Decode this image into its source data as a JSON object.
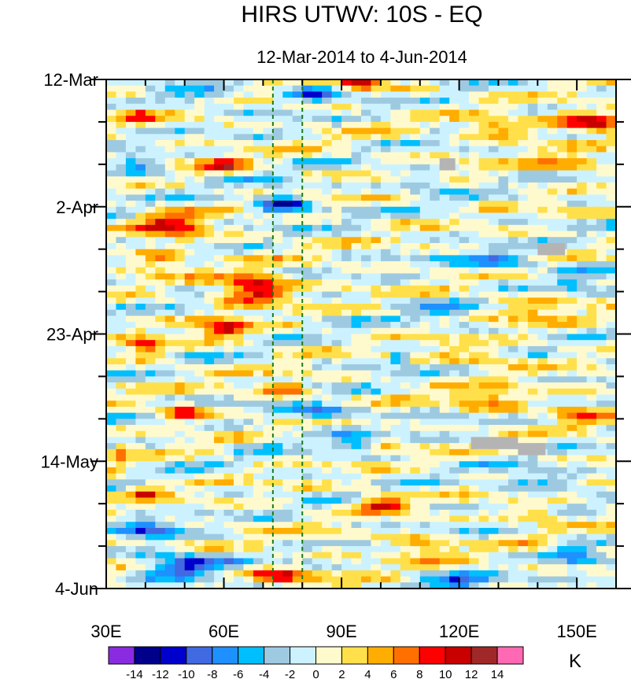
{
  "chart_data": {
    "type": "heatmap",
    "title": "HIRS UTWV: 10S - EQ",
    "subtitle": "12-Mar-2014 to 4-Jun-2014",
    "x_axis": {
      "range": [
        30,
        160
      ],
      "ticks": [
        {
          "value": 30,
          "label": "30E"
        },
        {
          "value": 60,
          "label": "60E"
        },
        {
          "value": 90,
          "label": "90E"
        },
        {
          "value": 120,
          "label": "120E"
        },
        {
          "value": 150,
          "label": "150E"
        }
      ]
    },
    "y_axis": {
      "range_days": [
        0,
        84
      ],
      "direction": "downward",
      "ticks": [
        {
          "day": 0,
          "label": "12-Mar"
        },
        {
          "day": 21,
          "label": "2-Apr"
        },
        {
          "day": 42,
          "label": "23-Apr"
        },
        {
          "day": 63,
          "label": "14-May"
        },
        {
          "day": 84,
          "label": "4-Jun"
        }
      ]
    },
    "reference_lines": [
      {
        "longitude": 72.5,
        "style": "dashed",
        "color": "#1a7a1a"
      },
      {
        "longitude": 80,
        "style": "dashed",
        "color": "#1a7a1a"
      }
    ],
    "missing_regions": [
      {
        "lon": [
          115,
          119
        ],
        "day": [
          13,
          15
        ]
      },
      {
        "lon": [
          140,
          147
        ],
        "day": [
          27,
          29
        ]
      },
      {
        "lon": [
          123,
          135
        ],
        "day": [
          59,
          61
        ]
      },
      {
        "lon": [
          135,
          142
        ],
        "day": [
          60,
          62
        ]
      }
    ],
    "colorbar": {
      "units": "K",
      "levels": [
        "-14",
        "-12",
        "-10",
        "-8",
        "-6",
        "-4",
        "-2",
        "0",
        "2",
        "4",
        "6",
        "8",
        "10",
        "12",
        "14"
      ],
      "colors": [
        "#8a2be2",
        "#00008b",
        "#0000cd",
        "#4169e1",
        "#1e90ff",
        "#00bfff",
        "#9ecae1",
        "#cdf2ff",
        "#fffacd",
        "#ffe04a",
        "#ffad00",
        "#ff7000",
        "#ff0000",
        "#c80000",
        "#a02828",
        "#ff69b4"
      ]
    },
    "features": [
      {
        "lon": 47,
        "day": 24,
        "value": 10,
        "sx": 8,
        "sy": 2.2
      },
      {
        "lon": 68,
        "day": 34.5,
        "value": 12,
        "sx": 9,
        "sy": 2.5
      },
      {
        "lon": 60,
        "day": 41,
        "value": 9,
        "sx": 6,
        "sy": 1.8
      },
      {
        "lon": 43,
        "day": 30,
        "value": 6,
        "sx": 7,
        "sy": 2
      },
      {
        "lon": 153,
        "day": 7,
        "value": 12,
        "sx": 10,
        "sy": 1.6
      },
      {
        "lon": 130,
        "day": 8,
        "value": 8,
        "sx": 8,
        "sy": 1.5
      },
      {
        "lon": 148,
        "day": 14,
        "value": 7,
        "sx": 8,
        "sy": 1.4
      },
      {
        "lon": 95,
        "day": 0.6,
        "value": 10,
        "sx": 5,
        "sy": 1
      },
      {
        "lon": 60,
        "day": 14,
        "value": 9,
        "sx": 6,
        "sy": 1.2
      },
      {
        "lon": 38,
        "day": 6,
        "value": 6,
        "sx": 5,
        "sy": 1.4
      },
      {
        "lon": 50,
        "day": 55,
        "value": 9,
        "sx": 5,
        "sy": 1.4
      },
      {
        "lon": 75,
        "day": 51,
        "value": 9,
        "sx": 6,
        "sy": 1
      },
      {
        "lon": 100,
        "day": 70,
        "value": 10,
        "sx": 6,
        "sy": 1.3
      },
      {
        "lon": 140,
        "day": 72,
        "value": 7,
        "sx": 6,
        "sy": 1.2
      },
      {
        "lon": 75,
        "day": 82,
        "value": 9,
        "sx": 9,
        "sy": 1.3
      },
      {
        "lon": 128,
        "day": 53,
        "value": 7,
        "sx": 10,
        "sy": 1.6
      },
      {
        "lon": 150,
        "day": 55,
        "value": 6,
        "sx": 6,
        "sy": 2
      },
      {
        "lon": 140,
        "day": 38,
        "value": 5,
        "sx": 10,
        "sy": 2
      },
      {
        "lon": 110,
        "day": 77,
        "value": 6,
        "sx": 8,
        "sy": 1.5
      },
      {
        "lon": 125,
        "day": 46,
        "value": 5,
        "sx": 10,
        "sy": 1.5
      },
      {
        "lon": 40,
        "day": 44,
        "value": 7,
        "sx": 5,
        "sy": 2
      },
      {
        "lon": 33,
        "day": 62,
        "value": 6,
        "sx": 3,
        "sy": 2
      },
      {
        "lon": 40,
        "day": 68,
        "value": 7,
        "sx": 5,
        "sy": 1.5
      },
      {
        "lon": 100,
        "day": 60,
        "value": 6,
        "sx": 6,
        "sy": 1.3
      },
      {
        "lon": 82,
        "day": 2,
        "value": -9,
        "sx": 7,
        "sy": 1.3
      },
      {
        "lon": 75,
        "day": 20.5,
        "value": -12,
        "sx": 6,
        "sy": 1.6
      },
      {
        "lon": 38,
        "day": 14,
        "value": -8,
        "sx": 5,
        "sy": 1.3
      },
      {
        "lon": 110,
        "day": 17,
        "value": -6,
        "sx": 6,
        "sy": 1.2
      },
      {
        "lon": 105,
        "day": 46,
        "value": -14,
        "sx": 2,
        "sy": 0.8
      },
      {
        "lon": 85,
        "day": 55,
        "value": -10,
        "sx": 9,
        "sy": 1.1
      },
      {
        "lon": 95,
        "day": 60,
        "value": -11,
        "sx": 7,
        "sy": 1
      },
      {
        "lon": 50,
        "day": 80,
        "value": -11,
        "sx": 10,
        "sy": 1.8
      },
      {
        "lon": 40,
        "day": 74,
        "value": -9,
        "sx": 7,
        "sy": 1.5
      },
      {
        "lon": 140,
        "day": 66,
        "value": -6,
        "sx": 10,
        "sy": 1.4
      },
      {
        "lon": 120,
        "day": 83,
        "value": -8,
        "sx": 8,
        "sy": 1.2
      },
      {
        "lon": 150,
        "day": 78,
        "value": -6,
        "sx": 6,
        "sy": 2
      },
      {
        "lon": 130,
        "day": 30,
        "value": -6,
        "sx": 12,
        "sy": 1.5
      },
      {
        "lon": 55,
        "day": 3,
        "value": -5,
        "sx": 10,
        "sy": 1.2
      },
      {
        "lon": 150,
        "day": 33,
        "value": -5,
        "sx": 6,
        "sy": 2
      },
      {
        "lon": 30,
        "day": 61,
        "value": -7,
        "sx": 2,
        "sy": 1
      },
      {
        "lon": 115,
        "day": 38,
        "value": -4,
        "sx": 8,
        "sy": 1.5
      }
    ]
  }
}
